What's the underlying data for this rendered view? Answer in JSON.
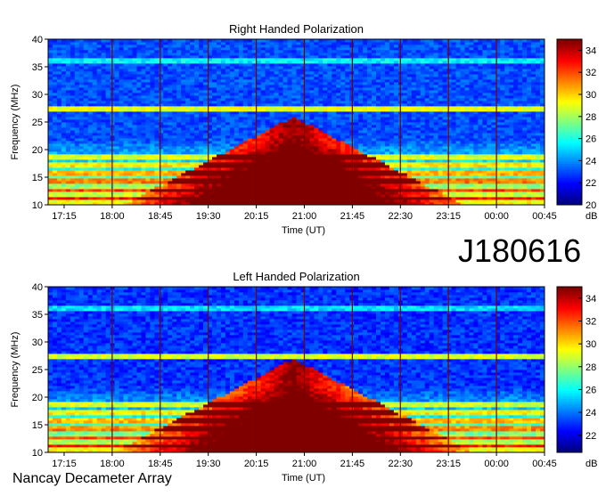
{
  "observatory_label": "Nancay Decameter Array",
  "observation_id": "J180616",
  "colors": {
    "background_low": "#1e4fd8",
    "emission_high": "#8b0000",
    "grid_line": "#7a0000"
  },
  "chart_data": [
    {
      "type": "heatmap",
      "title": "Right Handed Polarization",
      "xlabel": "Time (UT)",
      "ylabel": "Frequency (MHz)",
      "x_ticks": [
        "17:15",
        "18:00",
        "18:45",
        "19:30",
        "20:15",
        "21:00",
        "21:45",
        "22:30",
        "23:15",
        "00:00",
        "00:45"
      ],
      "y_ticks": [
        10,
        15,
        20,
        25,
        30,
        35,
        40
      ],
      "ylim": [
        10,
        40
      ],
      "colorbar": {
        "label": "dB",
        "ticks": [
          20,
          22,
          24,
          26,
          28,
          30,
          32,
          34
        ],
        "range": [
          20,
          35
        ]
      },
      "description_values": {
        "background_level_db": 22.5,
        "peak_emission_time": "20:50",
        "peak_emission_max_freq_mhz": 26
      }
    },
    {
      "type": "heatmap",
      "title": "Left Handed Polarization",
      "xlabel": "Time (UT)",
      "ylabel": "Frequency (MHz)",
      "x_ticks": [
        "17:15",
        "18:00",
        "18:45",
        "19:30",
        "20:15",
        "21:00",
        "21:45",
        "22:30",
        "23:15",
        "00:00",
        "00:45"
      ],
      "y_ticks": [
        10,
        15,
        20,
        25,
        30,
        35,
        40
      ],
      "ylim": [
        10,
        40
      ],
      "colorbar": {
        "label": "dB",
        "ticks": [
          22,
          24,
          26,
          28,
          30,
          32,
          34
        ],
        "range": [
          20.5,
          35
        ]
      },
      "description_values": {
        "background_level_db": 22.5,
        "peak_emission_time": "20:50",
        "peak_emission_max_freq_mhz": 27
      }
    }
  ]
}
